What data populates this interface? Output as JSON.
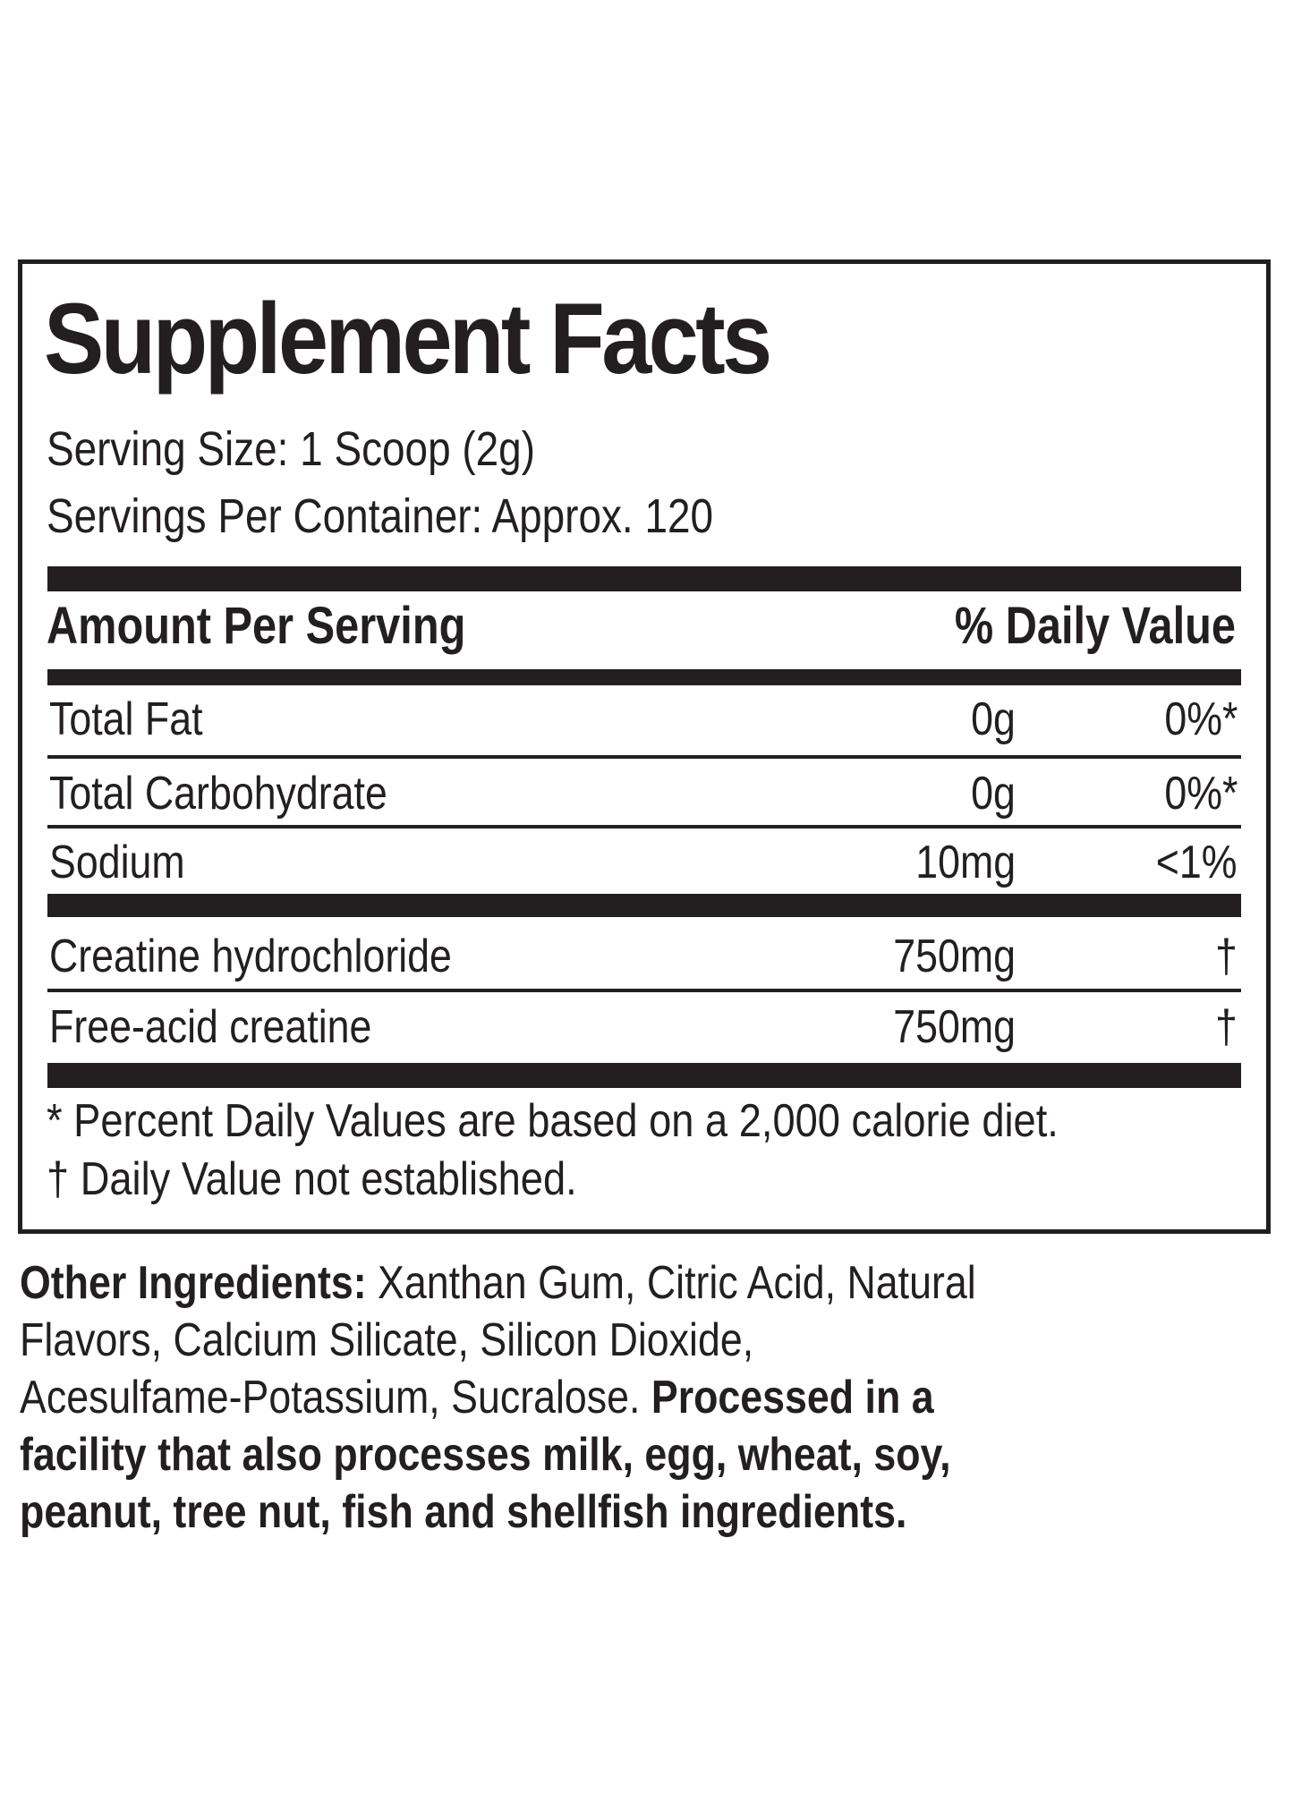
{
  "panel": {
    "title": "Supplement Facts",
    "serving_size": "Serving Size: 1 Scoop (2g)",
    "servings_per_container": "Servings Per Container: Approx. 120",
    "header": {
      "amount": "Amount Per Serving",
      "daily_value": "% Daily Value"
    },
    "rows": [
      {
        "name": "Total Fat",
        "amount": "0g",
        "dv": "0%*"
      },
      {
        "name": "Total Carbohydrate",
        "amount": "0g",
        "dv": "0%*"
      },
      {
        "name": "Sodium",
        "amount": "10mg",
        "dv": "<1%"
      },
      {
        "name": "Creatine hydrochloride",
        "amount": "750mg",
        "dv": "†"
      },
      {
        "name": "Free-acid creatine",
        "amount": "750mg",
        "dv": "†"
      }
    ],
    "footnotes": [
      "* Percent Daily Values are based on a 2,000 calorie diet.",
      "† Daily Value not established."
    ]
  },
  "other_ingredients": {
    "label": "Other Ingredients:",
    "line1": "Xanthan Gum, Citric Acid, Natural",
    "line2": "Flavors, Calcium Silicate, Silicon Dioxide,",
    "line3": "Acesulfame-Potassium, Sucralose.",
    "warning_line1": "Processed in a",
    "warning_line2": "facility that also processes milk, egg, wheat, soy,",
    "warning_line3": "peanut, tree nut, fish and shellfish ingredients."
  }
}
